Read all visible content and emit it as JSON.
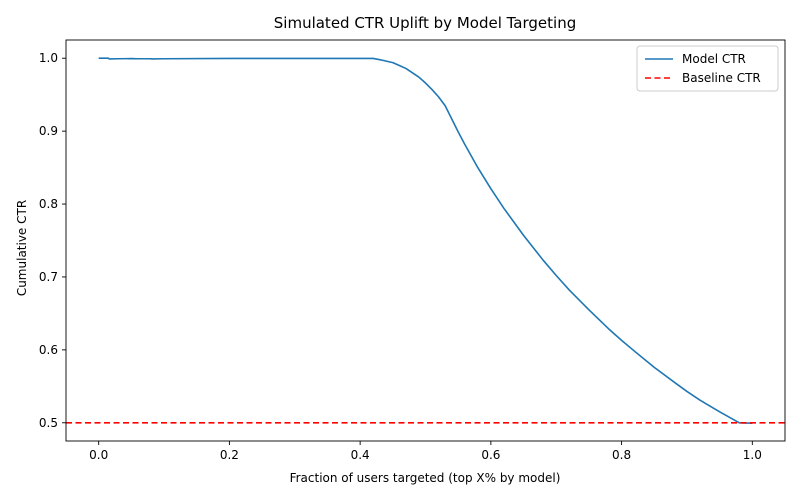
{
  "chart_data": {
    "type": "line",
    "title": "Simulated CTR Uplift by Model Targeting",
    "xlabel": "Fraction of users targeted (top X% by model)",
    "ylabel": "Cumulative CTR",
    "xlim": [
      -0.05,
      1.05
    ],
    "ylim": [
      0.475,
      1.025
    ],
    "xticks": [
      0.0,
      0.2,
      0.4,
      0.6,
      0.8,
      1.0
    ],
    "xtick_labels": [
      "0.0",
      "0.2",
      "0.4",
      "0.6",
      "0.8",
      "1.0"
    ],
    "yticks": [
      0.5,
      0.6,
      0.7,
      0.8,
      0.9,
      1.0
    ],
    "ytick_labels": [
      "0.5",
      "0.6",
      "0.7",
      "0.8",
      "0.9",
      "1.0"
    ],
    "grid": false,
    "legend": {
      "position": "top-right",
      "entries": [
        "Model CTR",
        "Baseline CTR"
      ]
    },
    "series": [
      {
        "name": "Model CTR",
        "style": "solid",
        "color": "#1f77b4",
        "x": [
          0.0,
          0.015,
          0.016,
          0.03,
          0.05,
          0.06,
          0.08,
          0.081,
          0.1,
          0.2,
          0.3,
          0.4,
          0.42,
          0.43,
          0.44,
          0.45,
          0.46,
          0.47,
          0.48,
          0.49,
          0.5,
          0.51,
          0.52,
          0.53,
          0.54,
          0.55,
          0.56,
          0.58,
          0.6,
          0.62,
          0.65,
          0.68,
          0.7,
          0.72,
          0.75,
          0.78,
          0.8,
          0.82,
          0.85,
          0.88,
          0.9,
          0.92,
          0.95,
          0.98,
          1.0
        ],
        "y": [
          1.0,
          1.0,
          0.999,
          0.9993,
          0.9995,
          0.9993,
          0.9993,
          0.999,
          0.9993,
          0.9997,
          0.9997,
          0.9997,
          0.9997,
          0.998,
          0.996,
          0.994,
          0.99,
          0.986,
          0.98,
          0.974,
          0.966,
          0.957,
          0.947,
          0.935,
          0.917,
          0.899,
          0.882,
          0.85,
          0.821,
          0.794,
          0.757,
          0.723,
          0.702,
          0.682,
          0.655,
          0.629,
          0.613,
          0.598,
          0.576,
          0.556,
          0.543,
          0.531,
          0.515,
          0.5,
          0.4995
        ]
      },
      {
        "name": "Baseline CTR",
        "style": "dashed",
        "color": "#ff0000",
        "y_const": 0.5
      }
    ]
  }
}
